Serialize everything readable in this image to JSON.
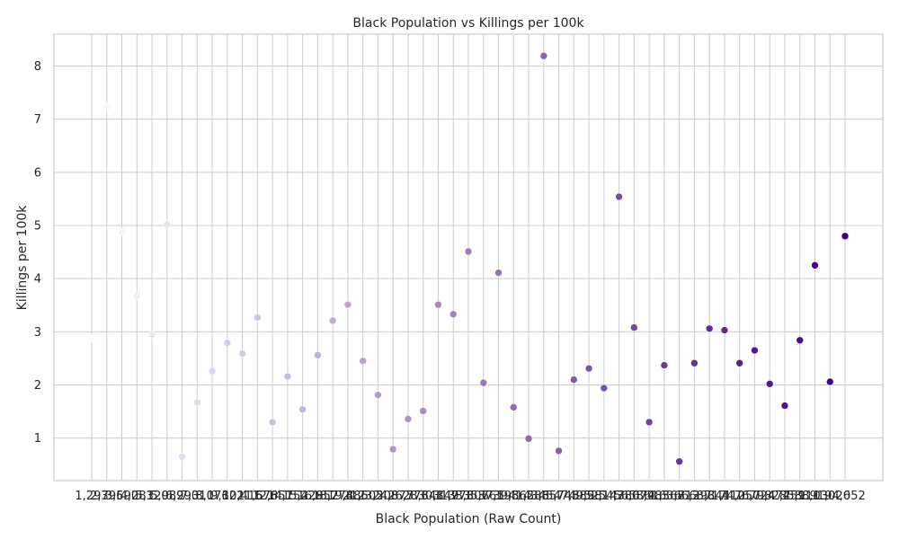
{
  "chart_data": {
    "type": "scatter",
    "title": "Black Population vs Killings per 100k",
    "xlabel": "Black Population (Raw Count)",
    "ylabel": "Killings per 100k",
    "ylim": [
      0.2,
      8.6
    ],
    "yticks": [
      1,
      2,
      3,
      4,
      5,
      6,
      7,
      8
    ],
    "grid": true,
    "color_low": "#fcfbfd",
    "color_high": "#3f007d",
    "x_labels": [
      "1,293",
      "2,796",
      "3,590",
      "4,283",
      "5,120",
      "5,989",
      "6,290",
      "7,310",
      "8,176",
      "9,322",
      "10,415",
      "11,676",
      "12,857",
      "14,152",
      "15,429",
      "16,857",
      "18,274",
      "19,886",
      "21,505",
      "23,208",
      "24,877",
      "26,576",
      "28,348",
      "30,147",
      "31,973",
      "33,807",
      "35,661",
      "37,598",
      "39,562",
      "41,588",
      "43,657",
      "45,745",
      "47,885",
      "49,981",
      "52,147",
      "54,380",
      "56,674",
      "58,985",
      "61,367",
      "63,813",
      "66,293",
      "68,841",
      "71,412",
      "74,050",
      "76,724",
      "79,474",
      "82,259",
      "85,111",
      "88,030",
      "91,026",
      "94,052"
    ],
    "y": [
      2.87,
      7.23,
      4.88,
      3.67,
      2.95,
      5.02,
      0.65,
      1.67,
      2.26,
      2.79,
      2.59,
      3.27,
      1.3,
      2.16,
      1.54,
      2.56,
      3.21,
      3.51,
      2.45,
      1.81,
      0.79,
      1.36,
      1.51,
      3.51,
      3.33,
      4.51,
      2.04,
      4.11,
      1.58,
      0.99,
      8.19,
      0.76,
      2.1,
      2.31,
      1.94,
      5.54,
      3.08,
      1.3,
      2.37,
      0.56,
      2.41,
      3.06,
      3.03,
      2.41,
      2.65,
      2.02,
      1.61,
      2.84,
      4.25,
      2.06,
      4.8
    ]
  }
}
